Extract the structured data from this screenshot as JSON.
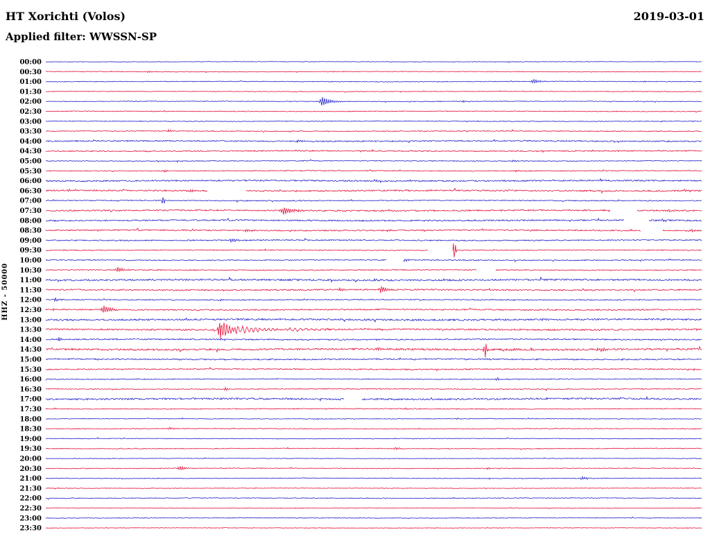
{
  "chart_data": {
    "type": "helicorder-seismogram",
    "station": "HT Xorichti (Volos)",
    "date": "2019-03-01",
    "filter_line": "Applied filter: WWSSN-SP",
    "channel_scale": "HHZ - 50000",
    "row_interval_minutes": 30,
    "time_span": "00:00-23:30",
    "legend_position": "none",
    "grid": false,
    "colors": {
      "blue": "#2222c8",
      "red": "#e3103a"
    },
    "rows": [
      {
        "label": "00:00",
        "n": 0.4,
        "ev": []
      },
      {
        "label": "00:30",
        "n": 0.45,
        "ev": [
          {
            "t": "burst",
            "x": 0.157,
            "a": 1.5,
            "w": 0.008
          }
        ]
      },
      {
        "label": "01:00",
        "n": 0.5,
        "ev": [
          {
            "t": "burst",
            "x": 0.744,
            "a": 3,
            "w": 0.015
          },
          {
            "t": "burst",
            "x": 0.913,
            "a": 1,
            "w": 0.006
          }
        ]
      },
      {
        "label": "01:30",
        "n": 0.45,
        "ev": []
      },
      {
        "label": "02:00",
        "n": 0.5,
        "ev": [
          {
            "t": "burst",
            "x": 0.422,
            "a": 7,
            "w": 0.018
          },
          {
            "t": "burst",
            "x": 0.636,
            "a": 1.5,
            "w": 0.008
          }
        ]
      },
      {
        "label": "02:30",
        "n": 0.5,
        "ev": [
          {
            "t": "burst",
            "x": 0.181,
            "a": 1.2,
            "w": 0.006
          },
          {
            "t": "burst",
            "x": 0.612,
            "a": 1,
            "w": 0.006
          }
        ]
      },
      {
        "label": "03:00",
        "n": 0.5,
        "ev": []
      },
      {
        "label": "03:30",
        "n": 0.6,
        "ev": [
          {
            "t": "burst",
            "x": 0.187,
            "a": 2,
            "w": 0.01
          }
        ]
      },
      {
        "label": "04:00",
        "n": 0.9,
        "ev": [
          {
            "t": "burst",
            "x": 0.385,
            "a": 1.5,
            "w": 0.01
          },
          {
            "t": "burst",
            "x": 0.522,
            "a": 1.2,
            "w": 0.008
          }
        ]
      },
      {
        "label": "04:30",
        "n": 0.8,
        "ev": [
          {
            "t": "burst",
            "x": 0.834,
            "a": 1,
            "w": 0.006
          }
        ]
      },
      {
        "label": "05:00",
        "n": 0.6,
        "ev": [
          {
            "t": "burst",
            "x": 0.591,
            "a": 1.5,
            "w": 0.006
          },
          {
            "t": "burst",
            "x": 0.713,
            "a": 1.5,
            "w": 0.006
          },
          {
            "t": "burst",
            "x": 0.898,
            "a": 1.2,
            "w": 0.006
          }
        ]
      },
      {
        "label": "05:30",
        "n": 0.6,
        "ev": [
          {
            "t": "burst",
            "x": 0.182,
            "a": 1.5,
            "w": 0.006
          },
          {
            "t": "burst",
            "x": 0.718,
            "a": 1.5,
            "w": 0.006
          }
        ]
      },
      {
        "label": "06:00",
        "n": 1.0,
        "ev": [
          {
            "t": "burst",
            "x": 0.501,
            "a": 1.5,
            "w": 0.008
          }
        ]
      },
      {
        "label": "06:30",
        "n": 1.0,
        "ev": [
          {
            "t": "burst",
            "x": 0.036,
            "a": 2,
            "w": 0.02
          },
          {
            "t": "burst",
            "x": 0.221,
            "a": 2.5,
            "w": 0.01
          },
          {
            "t": "gap",
            "x": 0.247,
            "w": 0.058
          },
          {
            "t": "burst",
            "x": 0.554,
            "a": 1.5,
            "w": 0.006
          },
          {
            "t": "burst",
            "x": 0.977,
            "a": 2,
            "w": 0.006
          }
        ]
      },
      {
        "label": "07:00",
        "n": 0.7,
        "ev": [
          {
            "t": "spike",
            "x": 0.179,
            "a": 6
          }
        ]
      },
      {
        "label": "07:30",
        "n": 1.0,
        "ev": [
          {
            "t": "burst",
            "x": 0.364,
            "a": 6,
            "w": 0.02
          },
          {
            "t": "gap",
            "x": 0.861,
            "w": 0.04
          },
          {
            "t": "burst",
            "x": 0.95,
            "a": 1.5,
            "w": 0.006
          }
        ]
      },
      {
        "label": "08:00",
        "n": 1.0,
        "ev": [
          {
            "t": "burst",
            "x": 0.015,
            "a": 1.5,
            "w": 0.008
          },
          {
            "t": "gap",
            "x": 0.882,
            "w": 0.037
          },
          {
            "t": "burst",
            "x": 0.94,
            "a": 1.5,
            "w": 0.005
          }
        ]
      },
      {
        "label": "08:30",
        "n": 0.9,
        "ev": [
          {
            "t": "burst",
            "x": 0.306,
            "a": 2.5,
            "w": 0.008
          },
          {
            "t": "gap",
            "x": 0.908,
            "w": 0.032
          },
          {
            "t": "burst",
            "x": 0.985,
            "a": 2.5,
            "w": 0.006
          }
        ]
      },
      {
        "label": "09:00",
        "n": 0.8,
        "ev": [
          {
            "t": "burst",
            "x": 0.284,
            "a": 2.5,
            "w": 0.015
          }
        ]
      },
      {
        "label": "09:30",
        "n": 0.6,
        "ev": [
          {
            "t": "gap",
            "x": 0.583,
            "w": 0.037
          },
          {
            "t": "spike",
            "x": 0.623,
            "a": -14
          }
        ]
      },
      {
        "label": "10:00",
        "n": 0.7,
        "ev": [
          {
            "t": "gap",
            "x": 0.52,
            "w": 0.025
          },
          {
            "t": "burst",
            "x": 0.548,
            "a": 2,
            "w": 0.008
          },
          {
            "t": "burst",
            "x": 0.66,
            "a": 1.2,
            "w": 0.006
          }
        ]
      },
      {
        "label": "10:30",
        "n": 0.7,
        "ev": [
          {
            "t": "burst",
            "x": 0.11,
            "a": 3.5,
            "w": 0.015
          },
          {
            "t": "gap",
            "x": 0.657,
            "w": 0.029
          }
        ]
      },
      {
        "label": "11:00",
        "n": 1.2,
        "ev": [
          {
            "t": "burst",
            "x": 0.501,
            "a": 1.5,
            "w": 0.01
          }
        ]
      },
      {
        "label": "11:30",
        "n": 1.0,
        "ev": [
          {
            "t": "burst",
            "x": 0.448,
            "a": 2,
            "w": 0.01
          },
          {
            "t": "burst",
            "x": 0.512,
            "a": 5,
            "w": 0.015
          }
        ]
      },
      {
        "label": "12:00",
        "n": 0.7,
        "ev": [
          {
            "t": "burst",
            "x": 0.015,
            "a": 2.5,
            "w": 0.008
          },
          {
            "t": "burst",
            "x": 0.268,
            "a": 1.2,
            "w": 0.006
          }
        ]
      },
      {
        "label": "12:30",
        "n": 0.9,
        "ev": [
          {
            "t": "burst",
            "x": 0.01,
            "a": 1.5,
            "w": 0.006
          },
          {
            "t": "burst",
            "x": 0.089,
            "a": 5.5,
            "w": 0.018
          }
        ]
      },
      {
        "label": "13:00",
        "n": 1.2,
        "ev": [
          {
            "t": "burst",
            "x": 0.179,
            "a": 1.5,
            "w": 0.006
          },
          {
            "t": "burst",
            "x": 0.49,
            "a": 1.5,
            "w": 0.008
          },
          {
            "t": "burst",
            "x": 0.755,
            "a": 1.2,
            "w": 0.006
          }
        ]
      },
      {
        "label": "13:30",
        "n": 1.1,
        "ev": [
          {
            "t": "spike",
            "x": 0.265,
            "a": 16
          },
          {
            "t": "burst",
            "x": 0.272,
            "a": 11,
            "w": 0.02,
            "f": 1.6
          },
          {
            "t": "burst",
            "x": 0.3,
            "a": 5,
            "w": 0.05,
            "f": 1.0
          },
          {
            "t": "burst",
            "x": 0.38,
            "a": 2,
            "w": 0.06,
            "f": 0.8
          }
        ]
      },
      {
        "label": "14:00",
        "n": 0.9,
        "ev": [
          {
            "t": "burst",
            "x": 0.02,
            "a": 2.5,
            "w": 0.008
          },
          {
            "t": "burst",
            "x": 0.268,
            "a": 2,
            "w": 0.01
          }
        ]
      },
      {
        "label": "14:30",
        "n": 1.3,
        "ev": [
          {
            "t": "burst",
            "x": 0.506,
            "a": 2,
            "w": 0.008
          },
          {
            "t": "spike",
            "x": 0.67,
            "a": -12
          },
          {
            "t": "burst",
            "x": 0.712,
            "a": 2.5,
            "w": 0.01
          },
          {
            "t": "burst",
            "x": 0.845,
            "a": 2,
            "w": 0.02
          }
        ]
      },
      {
        "label": "15:00",
        "n": 0.9,
        "ev": [
          {
            "t": "burst",
            "x": 0.67,
            "a": 1.5,
            "w": 0.006
          }
        ]
      },
      {
        "label": "15:30",
        "n": 0.8,
        "ev": []
      },
      {
        "label": "16:00",
        "n": 0.6,
        "ev": [
          {
            "t": "spike",
            "x": 0.689,
            "a": 3
          }
        ]
      },
      {
        "label": "16:30",
        "n": 0.6,
        "ev": [
          {
            "t": "burst",
            "x": 0.274,
            "a": 2.5,
            "w": 0.008
          }
        ]
      },
      {
        "label": "17:00",
        "n": 1.2,
        "ev": [
          {
            "t": "gap",
            "x": 0.455,
            "w": 0.026
          }
        ]
      },
      {
        "label": "17:30",
        "n": 0.6,
        "ev": [
          {
            "t": "burst",
            "x": 0.549,
            "a": 1.2,
            "w": 0.006
          }
        ]
      },
      {
        "label": "18:00",
        "n": 0.45,
        "ev": [
          {
            "t": "burst",
            "x": 0.628,
            "a": 1,
            "w": 0.005
          }
        ]
      },
      {
        "label": "18:30",
        "n": 0.5,
        "ev": [
          {
            "t": "burst",
            "x": 0.189,
            "a": 2,
            "w": 0.008
          }
        ]
      },
      {
        "label": "19:00",
        "n": 0.45,
        "ev": []
      },
      {
        "label": "19:30",
        "n": 0.5,
        "ev": [
          {
            "t": "burst",
            "x": 0.533,
            "a": 1.8,
            "w": 0.012
          }
        ]
      },
      {
        "label": "20:00",
        "n": 0.4,
        "ev": []
      },
      {
        "label": "20:30",
        "n": 0.5,
        "ev": [
          {
            "t": "burst",
            "x": 0.205,
            "a": 3.5,
            "w": 0.012
          },
          {
            "t": "burst",
            "x": 0.675,
            "a": 1.5,
            "w": 0.006
          }
        ]
      },
      {
        "label": "21:00",
        "n": 0.45,
        "ev": [
          {
            "t": "burst",
            "x": 0.818,
            "a": 2.5,
            "w": 0.01
          }
        ]
      },
      {
        "label": "21:30",
        "n": 0.4,
        "ev": []
      },
      {
        "label": "22:00",
        "n": 0.5,
        "ev": [
          {
            "t": "burst",
            "x": 0.623,
            "a": 1,
            "w": 0.005
          }
        ]
      },
      {
        "label": "22:30",
        "n": 0.4,
        "ev": []
      },
      {
        "label": "23:00",
        "n": 0.45,
        "ev": [
          {
            "t": "burst",
            "x": 0.395,
            "a": 0.8,
            "w": 0.005
          }
        ]
      },
      {
        "label": "23:30",
        "n": 0.4,
        "ev": []
      }
    ]
  }
}
